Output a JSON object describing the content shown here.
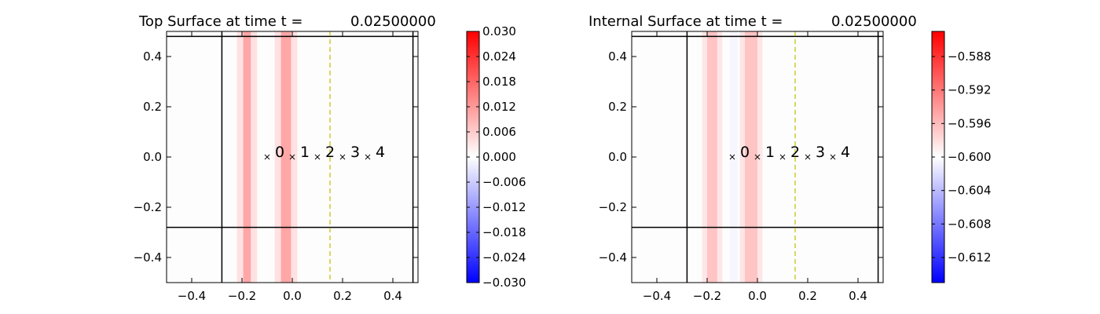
{
  "chart_data": [
    {
      "type": "heatmap",
      "title": "Top Surface at time t =",
      "time_value": "0.02500000",
      "xlim": [
        -0.5,
        0.5
      ],
      "ylim": [
        -0.5,
        0.5
      ],
      "x_ticks": [
        -0.4,
        -0.2,
        0.0,
        0.2,
        0.4
      ],
      "x_tick_labels": [
        "−0.4",
        "−0.2",
        "0.0",
        "0.2",
        "0.4"
      ],
      "y_ticks": [
        -0.4,
        -0.2,
        0.0,
        0.2,
        0.4
      ],
      "y_tick_labels": [
        "−0.4",
        "−0.2",
        "0.0",
        "0.2",
        "0.4"
      ],
      "bands": [
        {
          "x0": -0.22,
          "x1": -0.14,
          "value": 0.0035
        },
        {
          "x0": -0.195,
          "x1": -0.165,
          "value": 0.0105
        },
        {
          "x0": -0.07,
          "x1": 0.02,
          "value": 0.0035
        },
        {
          "x0": -0.045,
          "x1": -0.005,
          "value": 0.0105
        }
      ],
      "frame_lines": {
        "vertical": [
          -0.28,
          0.48
        ],
        "horizontal": [
          -0.28,
          0.48
        ]
      },
      "dashed_line_x": 0.15,
      "dashed_color": "#bfbf00",
      "markers": [
        {
          "label": "0",
          "x": -0.1,
          "y": 0.0
        },
        {
          "label": "1",
          "x": 0.0,
          "y": 0.0
        },
        {
          "label": "2",
          "x": 0.1,
          "y": 0.0
        },
        {
          "label": "3",
          "x": 0.2,
          "y": 0.0
        },
        {
          "label": "4",
          "x": 0.3,
          "y": 0.0
        }
      ],
      "colorbar": {
        "vmin": -0.03,
        "vmax": 0.03,
        "ticks": [
          0.03,
          0.024,
          0.018,
          0.012,
          0.006,
          0.0,
          -0.006,
          -0.012,
          -0.018,
          -0.024,
          -0.03
        ],
        "tick_labels": [
          "0.030",
          "0.024",
          "0.018",
          "0.012",
          "0.006",
          "0.000",
          "−0.006",
          "−0.012",
          "−0.018",
          "−0.024",
          "−0.030"
        ]
      }
    },
    {
      "type": "heatmap",
      "title": "Internal Surface at time t =",
      "time_value": "0.02500000",
      "xlim": [
        -0.5,
        0.5
      ],
      "ylim": [
        -0.5,
        0.5
      ],
      "x_ticks": [
        -0.4,
        -0.2,
        0.0,
        0.2,
        0.4
      ],
      "x_tick_labels": [
        "−0.4",
        "−0.2",
        "0.0",
        "0.2",
        "0.4"
      ],
      "y_ticks": [
        -0.4,
        -0.2,
        0.0,
        0.2,
        0.4
      ],
      "y_tick_labels": [
        "−0.4",
        "−0.2",
        "0.0",
        "0.2",
        "0.4"
      ],
      "bands": [
        {
          "x0": -0.22,
          "x1": -0.14,
          "value": -0.5985
        },
        {
          "x0": -0.2,
          "x1": -0.16,
          "value": -0.5965
        },
        {
          "x0": -0.11,
          "x1": -0.08,
          "value": -0.6005
        },
        {
          "x0": -0.07,
          "x1": 0.02,
          "value": -0.5985
        },
        {
          "x0": -0.05,
          "x1": 0.0,
          "value": -0.5965
        }
      ],
      "frame_lines": {
        "vertical": [
          -0.28,
          0.48
        ],
        "horizontal": [
          -0.28,
          0.48
        ]
      },
      "dashed_line_x": 0.15,
      "dashed_color": "#bfbf00",
      "markers": [
        {
          "label": "0",
          "x": -0.1,
          "y": 0.0
        },
        {
          "label": "1",
          "x": 0.0,
          "y": 0.0
        },
        {
          "label": "2",
          "x": 0.1,
          "y": 0.0
        },
        {
          "label": "3",
          "x": 0.2,
          "y": 0.0
        },
        {
          "label": "4",
          "x": 0.3,
          "y": 0.0
        }
      ],
      "colorbar": {
        "vmin": -0.615,
        "vmax": -0.585,
        "ticks": [
          -0.588,
          -0.592,
          -0.596,
          -0.6,
          -0.604,
          -0.608,
          -0.612
        ],
        "tick_labels": [
          "−0.588",
          "−0.592",
          "−0.596",
          "−0.600",
          "−0.604",
          "−0.608",
          "−0.612"
        ]
      }
    }
  ]
}
